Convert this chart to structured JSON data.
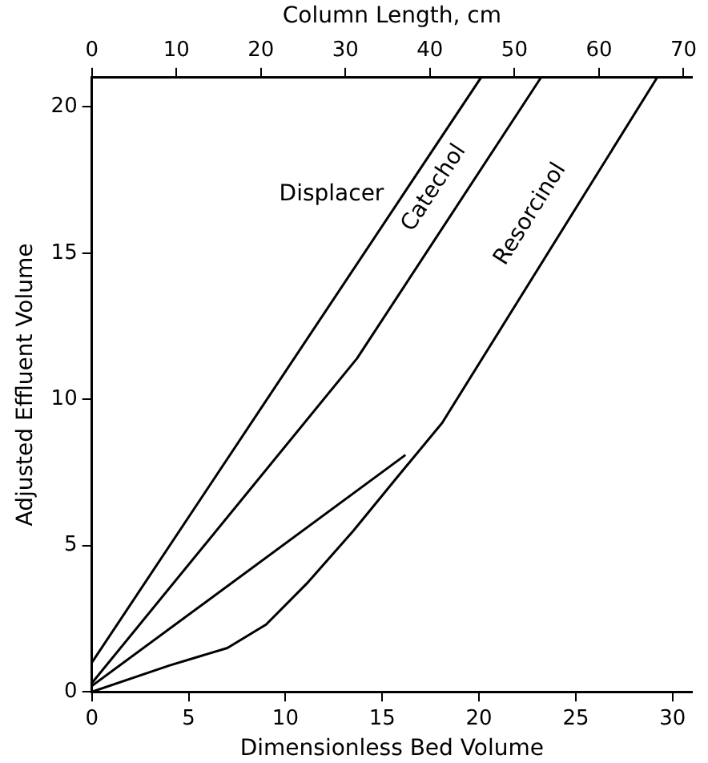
{
  "chart_data": {
    "type": "line",
    "xlabel": "Dimensionless Bed Volume",
    "x2label": "Column Length, cm",
    "ylabel": "Adjusted Effluent Volume",
    "xlim": [
      0,
      31
    ],
    "xticks": [
      0,
      5,
      10,
      15,
      20,
      25,
      30
    ],
    "x2lim": [
      0,
      71
    ],
    "x2ticks": [
      0,
      10,
      20,
      30,
      40,
      50,
      60,
      70
    ],
    "ylim": [
      0,
      21
    ],
    "yticks": [
      0,
      5,
      10,
      15,
      20
    ],
    "grid": false,
    "legend": false,
    "marker": "none",
    "series": [
      {
        "name": "Displacer",
        "color": "#000000",
        "x": [
          0,
          20.1
        ],
        "values": [
          1.0,
          21
        ]
      },
      {
        "name": "Catechol",
        "color": "#000000",
        "x": [
          0,
          13.7,
          23.2
        ],
        "values": [
          0.3,
          11.4,
          21
        ]
      },
      {
        "name": "Resorcinol",
        "color": "#000000",
        "x": [
          0,
          4,
          7,
          9,
          11.1,
          13.5,
          15.6,
          18.1,
          29.2
        ],
        "values": [
          0,
          0.9,
          1.5,
          2.3,
          3.7,
          5.5,
          7.2,
          9.2,
          21
        ]
      },
      {
        "color": "#000000",
        "x": [
          0,
          16.2
        ],
        "values": [
          0.2,
          8.1
        ]
      }
    ]
  }
}
